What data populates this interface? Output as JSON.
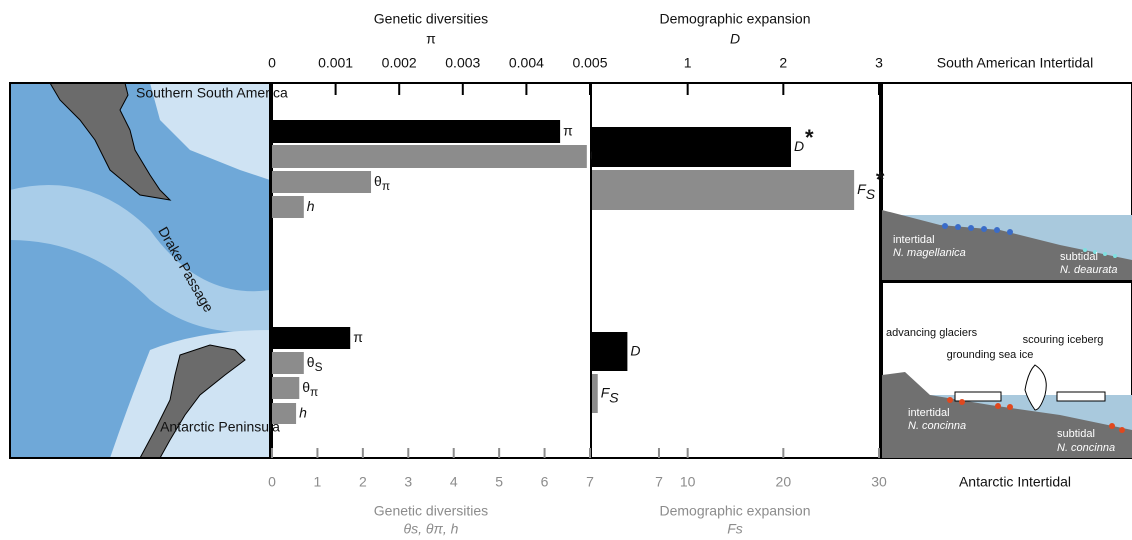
{
  "chart_data": [
    {
      "type": "bar",
      "top_axis": {
        "label": "Genetic diversities",
        "symbol": "π",
        "xlim": [
          0,
          0.005
        ],
        "xticks": [
          0,
          0.001,
          0.002,
          0.003,
          0.004,
          0.005
        ]
      },
      "bottom_axis": {
        "label": "Genetic diversities",
        "symbol": "θs, θπ, h",
        "xlim": [
          0,
          7
        ],
        "xticks": [
          0,
          1,
          2,
          3,
          4,
          5,
          6,
          7
        ]
      },
      "groups": [
        {
          "bars": [
            {
              "symbol": "π",
              "value": 0.00453,
              "axis": "top",
              "color": "#000000"
            },
            {
              "symbol": "θ",
              "subscript": "S",
              "value": 6.93,
              "axis": "bottom",
              "color": "#8c8c8c"
            },
            {
              "symbol": "θ",
              "subscript": "π",
              "value": 2.18,
              "axis": "bottom",
              "color": "#8c8c8c"
            },
            {
              "symbol": "h",
              "value": 0.7,
              "axis": "bottom",
              "color": "#8c8c8c"
            }
          ]
        },
        {
          "bars": [
            {
              "symbol": "π",
              "value": 0.00123,
              "axis": "top",
              "color": "#000000"
            },
            {
              "symbol": "θ",
              "subscript": "S",
              "value": 0.7,
              "axis": "bottom",
              "color": "#8c8c8c"
            },
            {
              "symbol": "θ",
              "subscript": "π",
              "value": 0.6,
              "axis": "bottom",
              "color": "#8c8c8c"
            },
            {
              "symbol": "h",
              "value": 0.53,
              "axis": "bottom",
              "color": "#8c8c8c"
            }
          ]
        }
      ]
    },
    {
      "type": "bar",
      "top_axis": {
        "label": "Demographic expansion",
        "symbol": "D",
        "xlim": [
          0,
          3
        ],
        "xticks": [
          1,
          2,
          3
        ]
      },
      "bottom_axis": {
        "label": "Demographic expansion",
        "symbol": "Fs",
        "xlim": [
          0,
          30
        ],
        "xticks": [
          7,
          10,
          20,
          30
        ]
      },
      "groups": [
        {
          "bars": [
            {
              "symbol": "D",
              "significance": "*",
              "value": 2.08,
              "axis": "top",
              "color": "#000000"
            },
            {
              "symbol": "F",
              "subscript": "S",
              "significance": "*",
              "value": 27.4,
              "axis": "bottom",
              "color": "#8c8c8c"
            }
          ]
        },
        {
          "bars": [
            {
              "symbol": "D",
              "value": 0.37,
              "axis": "top",
              "color": "#000000"
            },
            {
              "symbol": "F",
              "subscript": "S",
              "value": 0.6,
              "axis": "bottom",
              "color": "#8c8c8c"
            }
          ]
        }
      ]
    }
  ],
  "map": {
    "region_north": "Southern South America",
    "passage": "Drake Passage",
    "region_south": "Antarctic Peninsula"
  },
  "groups_titles": [
    "South American Intertidal",
    "Antarctic Intertidal"
  ],
  "diagram_top": {
    "intertidal": "intertidal",
    "intertidal_species": "N. magellanica",
    "subtidal": "subtidal",
    "subtidal_species": "N. deaurata"
  },
  "diagram_bottom": {
    "glaciers": "advancing glaciers",
    "sea_ice": "grounding sea ice",
    "iceberg": "scouring iceberg",
    "intertidal": "intertidal",
    "intertidal_species": "N. concinna",
    "subtidal": "subtidal",
    "subtidal_species": "N. concinna"
  }
}
